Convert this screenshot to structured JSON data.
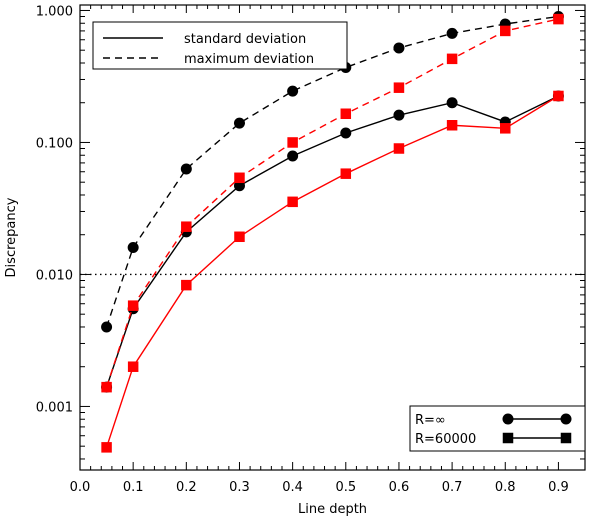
{
  "chart_data": {
    "type": "line",
    "xlabel": "Line depth",
    "ylabel": "Discrepancy",
    "xlim": [
      0.0,
      0.95
    ],
    "ylim": [
      0.00033,
      1.1
    ],
    "yscale": "log",
    "x_ticks": [
      "0.0",
      "0.1",
      "0.2",
      "0.3",
      "0.4",
      "0.5",
      "0.6",
      "0.7",
      "0.8",
      "0.9"
    ],
    "x_tick_values": [
      0.0,
      0.1,
      0.2,
      0.3,
      0.4,
      0.5,
      0.6,
      0.7,
      0.8,
      0.9
    ],
    "y_ticks": [
      "0.001",
      "0.010",
      "0.100",
      "1.000"
    ],
    "y_tick_values": [
      0.001,
      0.01,
      0.1,
      1.0
    ],
    "reference_line": {
      "y": 0.01,
      "style": "dotted"
    },
    "x": [
      0.05,
      0.1,
      0.2,
      0.3,
      0.4,
      0.5,
      0.6,
      0.7,
      0.8,
      0.9
    ],
    "series": [
      {
        "name": "standard deviation, R=∞",
        "stat": "standard",
        "resolution": "inf",
        "line": "solid",
        "marker": "circle",
        "color": "#000000",
        "values": [
          0.0014,
          0.0055,
          0.021,
          0.047,
          0.079,
          0.118,
          0.161,
          0.2,
          0.143,
          0.225
        ]
      },
      {
        "name": "maximum deviation, R=∞",
        "stat": "maximum",
        "resolution": "inf",
        "line": "dashed",
        "marker": "circle",
        "color": "#000000",
        "values": [
          0.004,
          0.016,
          0.063,
          0.14,
          0.245,
          0.37,
          0.52,
          0.67,
          0.79,
          0.9
        ]
      },
      {
        "name": "standard deviation, R=60000",
        "stat": "standard",
        "resolution": "60000",
        "line": "solid",
        "marker": "square",
        "color": "#ff0000",
        "values": [
          0.00049,
          0.002,
          0.0083,
          0.0193,
          0.0355,
          0.058,
          0.09,
          0.135,
          0.128,
          0.225
        ]
      },
      {
        "name": "maximum deviation, R=60000",
        "stat": "maximum",
        "resolution": "60000",
        "line": "dashed",
        "marker": "square",
        "color": "#ff0000",
        "values": [
          0.0014,
          0.0058,
          0.023,
          0.054,
          0.1,
          0.165,
          0.26,
          0.43,
          0.7,
          0.86
        ]
      }
    ],
    "legend_lines": {
      "placement": "top-left",
      "entries": [
        {
          "label": "standard deviation",
          "line": "solid"
        },
        {
          "label": "maximum deviation",
          "line": "dashed"
        }
      ]
    },
    "legend_markers": {
      "placement": "bottom-right",
      "entries": [
        {
          "label": "R=∞",
          "marker": "circle"
        },
        {
          "label": "R=60000",
          "marker": "square"
        }
      ]
    }
  }
}
